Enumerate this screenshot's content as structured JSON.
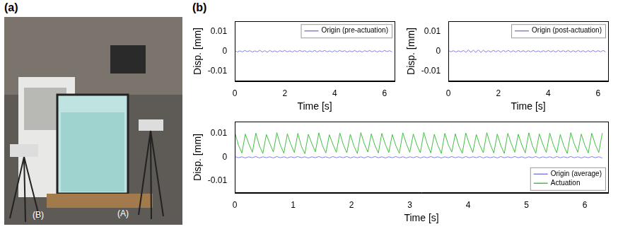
{
  "panels": {
    "a": {
      "label": "(a)",
      "annotations": [
        "(B)",
        "(A)"
      ]
    },
    "b": {
      "label": "(b)"
    }
  },
  "chart_data": [
    {
      "type": "line",
      "xlabel": "Time [s]",
      "ylabel": "Disp. [mm]",
      "x": [
        0,
        0.1,
        0.2,
        0.3,
        0.4,
        0.5,
        0.6,
        0.7,
        0.8,
        0.9,
        1,
        1.1,
        1.2,
        1.3,
        1.4,
        1.5,
        1.6,
        1.7,
        1.8,
        1.9,
        2,
        2.1,
        2.2,
        2.3,
        2.4,
        2.5,
        2.6,
        2.7,
        2.8,
        2.9,
        3,
        3.1,
        3.2,
        3.3,
        3.4,
        3.5,
        3.6,
        3.7,
        3.8,
        3.9,
        4,
        4.1,
        4.2,
        4.3,
        4.4,
        4.5,
        4.6,
        4.7,
        4.8,
        4.9,
        5,
        5.1,
        5.2,
        5.3,
        5.4,
        5.5,
        5.6,
        5.7,
        5.8,
        5.9,
        6,
        6.1,
        6.2,
        6.3
      ],
      "series": [
        {
          "name": "Origin (pre-actuation)",
          "color": "#8080e0",
          "values": [
            0.0003,
            -0.0004,
            0.0002,
            -0.0003,
            0.0004,
            -0.0002,
            0.0003,
            -0.0004,
            0.0002,
            -0.0003,
            0.0005,
            -0.0004,
            0.0003,
            -0.0005,
            0.0004,
            -0.0003,
            0.0002,
            -0.0004,
            0.0003,
            -0.0002,
            0.0004,
            -0.0003,
            0.0002,
            -0.0004,
            0.0003,
            -0.0003,
            0.0004,
            -0.0002,
            0.0003,
            -0.0004,
            0.0002,
            -0.0003,
            0.0004,
            -0.0004,
            0.0003,
            -0.0002,
            0.0004,
            -0.0003,
            0.0002,
            -0.0004,
            0.0003,
            -0.0003,
            0.0004,
            -0.0002,
            0.0003,
            -0.0004,
            0.0002,
            -0.0003,
            0.0004,
            -0.0003,
            0.0002,
            -0.0004,
            0.0003,
            -0.0002,
            0.0004,
            -0.0003,
            0.0003,
            -0.0004,
            0.0002,
            -0.0003,
            0.0004,
            -0.0002,
            0.0003,
            -0.0003
          ]
        }
      ],
      "xlim": [
        0,
        6.4
      ],
      "xticks": [
        0,
        2,
        4,
        6
      ],
      "ylim": [
        -0.015,
        0.015
      ],
      "yticks": [
        -0.01,
        0,
        0.01
      ],
      "grid": false,
      "legend": "top-right"
    },
    {
      "type": "line",
      "xlabel": "Time [s]",
      "ylabel": "Disp. [mm]",
      "x": [
        0,
        0.1,
        0.2,
        0.3,
        0.4,
        0.5,
        0.6,
        0.7,
        0.8,
        0.9,
        1,
        1.1,
        1.2,
        1.3,
        1.4,
        1.5,
        1.6,
        1.7,
        1.8,
        1.9,
        2,
        2.1,
        2.2,
        2.3,
        2.4,
        2.5,
        2.6,
        2.7,
        2.8,
        2.9,
        3,
        3.1,
        3.2,
        3.3,
        3.4,
        3.5,
        3.6,
        3.7,
        3.8,
        3.9,
        4,
        4.1,
        4.2,
        4.3,
        4.4,
        4.5,
        4.6,
        4.7,
        4.8,
        4.9,
        5,
        5.1,
        5.2,
        5.3,
        5.4,
        5.5,
        5.6,
        5.7,
        5.8,
        5.9,
        6,
        6.1,
        6.2,
        6.3
      ],
      "series": [
        {
          "name": "Origin (post-actuation)",
          "color": "#8080e0",
          "values": [
            0.0004,
            -0.0003,
            0.0003,
            -0.0004,
            0.0002,
            -0.0003,
            0.0004,
            -0.0005,
            0.0006,
            -0.0005,
            0.0005,
            -0.0006,
            0.0007,
            -0.0006,
            0.0005,
            -0.0004,
            0.0003,
            -0.0004,
            0.0005,
            -0.0003,
            0.0004,
            -0.0005,
            0.0004,
            -0.0003,
            0.0005,
            -0.0004,
            0.0003,
            -0.0004,
            0.0004,
            -0.0003,
            0.0003,
            -0.0004,
            0.0003,
            -0.0003,
            0.0004,
            -0.0003,
            0.0002,
            -0.0004,
            0.0003,
            -0.0003,
            0.0004,
            -0.0003,
            0.0003,
            -0.0004,
            0.0004,
            -0.0003,
            0.0003,
            -0.0003,
            0.0004,
            -0.0004,
            0.0003,
            -0.0003,
            0.0004,
            -0.0003,
            0.0003,
            -0.0004,
            0.0003,
            -0.0003,
            0.0004,
            -0.0003,
            0.0003,
            -0.0003,
            0.0004,
            -0.0003
          ]
        }
      ],
      "xlim": [
        0,
        6.4
      ],
      "xticks": [
        0,
        2,
        4,
        6
      ],
      "ylim": [
        -0.015,
        0.015
      ],
      "yticks": [
        -0.01,
        0,
        0.01
      ],
      "grid": false,
      "legend": "top-right"
    },
    {
      "type": "line",
      "xlabel": "Time [s]",
      "ylabel": "Disp. [mm]",
      "x": [
        0,
        0.06,
        0.12,
        0.18,
        0.24,
        0.3,
        0.36,
        0.42,
        0.48,
        0.54,
        0.6,
        0.66,
        0.72,
        0.78,
        0.84,
        0.9,
        0.96,
        1.02,
        1.08,
        1.14,
        1.2,
        1.26,
        1.32,
        1.38,
        1.44,
        1.5,
        1.56,
        1.62,
        1.68,
        1.74,
        1.8,
        1.86,
        1.92,
        1.98,
        2.04,
        2.1,
        2.16,
        2.22,
        2.28,
        2.34,
        2.4,
        2.46,
        2.52,
        2.58,
        2.64,
        2.7,
        2.76,
        2.82,
        2.88,
        2.94,
        3,
        3.06,
        3.12,
        3.18,
        3.24,
        3.3,
        3.36,
        3.42,
        3.48,
        3.54,
        3.6,
        3.66,
        3.72,
        3.78,
        3.84,
        3.9,
        3.96,
        4.02,
        4.08,
        4.14,
        4.2,
        4.26,
        4.32,
        4.38,
        4.44,
        4.5,
        4.56,
        4.62,
        4.68,
        4.74,
        4.8,
        4.86,
        4.92,
        4.98,
        5.04,
        5.1,
        5.16,
        5.22,
        5.28,
        5.34,
        5.4,
        5.46,
        5.52,
        5.58,
        5.64,
        5.7,
        5.76,
        5.82,
        5.88,
        5.94,
        6,
        6.06,
        6.12,
        6.18,
        6.24,
        6.3
      ],
      "series": [
        {
          "name": "Origin (average)",
          "color": "#8080e0",
          "values": [
            0.0003,
            -0.0002,
            0.0002,
            -0.0003,
            0.0002,
            -0.0002,
            0.0003,
            -0.0003,
            0.0002,
            -0.0002,
            0.0002,
            -0.0003,
            0.0003,
            -0.0002,
            0.0002,
            -0.0003,
            0.0002,
            -0.0002,
            0.0003,
            -0.0002,
            0.0002,
            -0.0003,
            0.0002,
            -0.0002,
            0.0003,
            -0.0002,
            0.0002,
            -0.0003,
            0.0003,
            -0.0002,
            0.0002,
            -0.0002,
            0.0003,
            -0.0003,
            0.0002,
            -0.0002,
            0.0002,
            -0.0003,
            0.0003,
            -0.0002,
            0.0003,
            -0.0002,
            0.0002,
            -0.0003,
            0.0002,
            -0.0002,
            0.0003,
            -0.0002,
            0.0002,
            -0.0003,
            0.0002,
            -0.0002,
            0.0003,
            -0.0003,
            0.0002,
            -0.0002,
            0.0003,
            -0.0002,
            0.0002,
            -0.0003,
            0.0002,
            -0.0002,
            0.0003,
            -0.0002,
            0.0002,
            -0.0003,
            0.0003,
            -0.0002,
            0.0002,
            -0.0002,
            0.0003,
            -0.0003,
            0.0002,
            -0.0002,
            0.0002,
            -0.0003,
            0.0003,
            -0.0002,
            0.0002,
            -0.0002,
            0.0003,
            -0.0002,
            0.0002,
            -0.0003,
            0.0002,
            -0.0002,
            0.0003,
            -0.0003,
            0.0002,
            -0.0002,
            0.0002,
            -0.0003,
            0.0003,
            -0.0002,
            0.0002,
            -0.0002,
            0.0003,
            -0.0002,
            0.0002,
            -0.0003,
            0.0002,
            -0.0002,
            0.0003,
            -0.0002,
            0.0002,
            -0.0003
          ]
        },
        {
          "name": "Actuation",
          "color": "#40c040",
          "values": [
            0.0105,
            0.0052,
            0.0018,
            0.0098,
            0.0056,
            0.0021,
            0.0102,
            0.0049,
            0.0016,
            0.0096,
            0.0058,
            0.0022,
            0.0104,
            0.0051,
            0.0017,
            0.0099,
            0.0054,
            0.002,
            0.0101,
            0.0047,
            0.0015,
            0.0097,
            0.0057,
            0.0023,
            0.0103,
            0.005,
            0.0018,
            0.0095,
            0.0055,
            0.0021,
            0.0102,
            0.0053,
            0.0019,
            0.0097,
            0.0048,
            0.0016,
            0.0104,
            0.0056,
            0.0022,
            0.0099,
            0.0051,
            0.0018,
            0.0101,
            0.0054,
            0.002,
            0.0096,
            0.0049,
            0.0017,
            0.0103,
            0.0057,
            0.0021,
            0.0098,
            0.0052,
            0.0019,
            0.0105,
            0.0055,
            0.0018,
            0.0097,
            0.005,
            0.0016,
            0.0101,
            0.0053,
            0.0022,
            0.0099,
            0.0048,
            0.0017,
            0.0102,
            0.0056,
            0.002,
            0.0096,
            0.0051,
            0.0019,
            0.0104,
            0.0054,
            0.0018,
            0.0098,
            0.0049,
            0.0016,
            0.0101,
            0.0057,
            0.0021,
            0.0097,
            0.0052,
            0.0018,
            0.0103,
            0.005,
            0.0017,
            0.0099,
            0.0055,
            0.002,
            0.0102,
            0.0053,
            0.0019,
            0.0096,
            0.0048,
            0.0016,
            0.0104,
            0.0056,
            0.0021,
            0.0098,
            0.0051,
            0.0018,
            0.0101,
            0.0054,
            0.002,
            0.0102
          ]
        }
      ],
      "xlim": [
        0,
        6.4
      ],
      "xticks": [
        0,
        1,
        2,
        3,
        4,
        5,
        6
      ],
      "ylim": [
        -0.015,
        0.015
      ],
      "yticks": [
        -0.01,
        0,
        0.01
      ],
      "grid": false,
      "legend": "bottom-right"
    }
  ]
}
